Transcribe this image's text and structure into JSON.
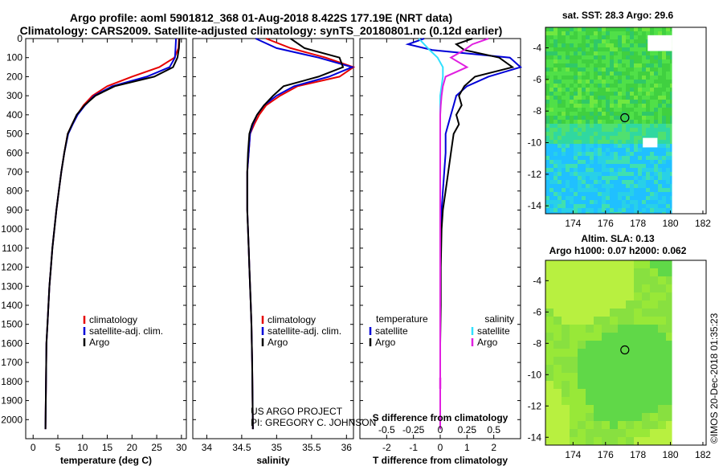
{
  "header": {
    "title_line1": "Argo profile: aoml 5901812_368 01-Aug-2018 8.422S 177.19E (NRT data)",
    "title_line2": "Climatology: CARS2009. Satellite-adjusted climatology: synTS_20180801.nc (0.12d earlier)"
  },
  "map_sst": {
    "title": "sat. SST: 28.3 Argo: 29.6"
  },
  "map_sla": {
    "title_line1": "Altim. SLA: 0.13",
    "title_line2": "Argo h1000: 0.07 h2000: 0.062"
  },
  "credits": {
    "project": "US ARGO PROJECT",
    "pi": "PI: GREGORY C. JOHNSON",
    "side": "©IMOS 20-Dec-2018 01:35:23"
  },
  "colors": {
    "climatology": "#e60000",
    "satellite": "#0000d8",
    "argo": "#000000",
    "sat_salinity": "#30e0ff",
    "argo_salinity": "#e020e0"
  },
  "chart_data": [
    {
      "type": "line",
      "xlabel": "temperature (deg C)",
      "ylim": [
        2100,
        0
      ],
      "xlim": [
        -1.5,
        31
      ],
      "xticks": [
        0,
        5,
        10,
        15,
        20,
        25,
        30
      ],
      "yticks": [
        0,
        100,
        200,
        300,
        400,
        500,
        600,
        700,
        800,
        900,
        1000,
        1100,
        1200,
        1300,
        1400,
        1500,
        1600,
        1700,
        1800,
        1900,
        2000
      ],
      "legend": [
        "climatology",
        "satellite-adj. clim.",
        "Argo"
      ],
      "series": [
        {
          "name": "climatology",
          "x": [
            29.5,
            29.4,
            28.6,
            25.5,
            20,
            15,
            12,
            10.2,
            8.9,
            7.9,
            7,
            6.3,
            5.7,
            5.2,
            4.7,
            4.3,
            3.9,
            3.6,
            3.3,
            3.1,
            2.9,
            2.7,
            2.5
          ],
          "y": [
            0,
            50,
            100,
            150,
            200,
            250,
            300,
            350,
            400,
            450,
            500,
            600,
            700,
            800,
            900,
            1000,
            1100,
            1200,
            1300,
            1400,
            1500,
            1600,
            2050
          ]
        },
        {
          "name": "satellite-adj. clim.",
          "x": [
            28.9,
            28.8,
            28.7,
            27.6,
            23,
            16,
            12.4,
            10.5,
            9,
            8,
            7.1,
            6.3,
            5.7,
            5.2,
            4.7,
            4.3,
            3.9,
            3.6,
            3.3,
            3.1,
            2.9,
            2.7,
            2.5
          ],
          "y": [
            0,
            50,
            100,
            150,
            200,
            250,
            300,
            350,
            400,
            450,
            500,
            600,
            700,
            800,
            900,
            1000,
            1100,
            1200,
            1300,
            1400,
            1500,
            1600,
            2050
          ]
        },
        {
          "name": "Argo",
          "x": [
            29.6,
            29.5,
            29.2,
            28.3,
            24.5,
            16.5,
            12.6,
            10.4,
            8.8,
            7.9,
            7,
            6.3,
            5.7,
            5.2,
            4.7,
            4.3,
            3.9,
            3.6,
            3.3,
            3.1,
            2.9,
            2.7,
            2.5
          ],
          "y": [
            0,
            50,
            100,
            150,
            200,
            250,
            300,
            350,
            400,
            450,
            500,
            600,
            700,
            800,
            900,
            1000,
            1100,
            1200,
            1300,
            1400,
            1500,
            1600,
            2050
          ]
        }
      ]
    },
    {
      "type": "line",
      "xlabel": "salinity",
      "ylim": [
        2100,
        0
      ],
      "xlim": [
        33.8,
        36.1
      ],
      "xticks": [
        34,
        34.5,
        35,
        35.5,
        36
      ],
      "legend": [
        "climatology",
        "satellite-adj. clim.",
        "Argo"
      ],
      "series": [
        {
          "name": "climatology",
          "x": [
            34.85,
            35.2,
            35.7,
            36.1,
            35.9,
            35.3,
            35.05,
            34.85,
            34.75,
            34.68,
            34.62,
            34.6,
            34.58,
            34.58,
            34.58,
            34.59,
            34.6,
            34.61,
            34.62,
            34.63,
            34.64,
            34.65,
            34.66
          ],
          "y": [
            0,
            50,
            100,
            150,
            200,
            250,
            300,
            350,
            400,
            450,
            500,
            600,
            700,
            800,
            900,
            1000,
            1100,
            1200,
            1300,
            1400,
            1500,
            1700,
            2050
          ]
        },
        {
          "name": "satellite-adj. clim.",
          "x": [
            34.7,
            35,
            35.6,
            36.08,
            35.75,
            35.25,
            35,
            34.82,
            34.72,
            34.66,
            34.62,
            34.6,
            34.58,
            34.58,
            34.58,
            34.59,
            34.6,
            34.61,
            34.62,
            34.63,
            34.64,
            34.65,
            34.66
          ],
          "y": [
            0,
            50,
            100,
            150,
            200,
            250,
            300,
            350,
            400,
            450,
            500,
            600,
            700,
            800,
            900,
            1000,
            1100,
            1200,
            1300,
            1400,
            1500,
            1700,
            2050
          ]
        },
        {
          "name": "Argo",
          "x": [
            35.2,
            35.4,
            35.9,
            35.95,
            35.6,
            35.1,
            34.95,
            34.82,
            34.72,
            34.65,
            34.61,
            34.59,
            34.58,
            34.58,
            34.58,
            34.59,
            34.6,
            34.61,
            34.62,
            34.63,
            34.64,
            34.65,
            34.66
          ],
          "y": [
            0,
            50,
            100,
            150,
            200,
            250,
            300,
            350,
            400,
            450,
            500,
            600,
            700,
            800,
            900,
            1000,
            1100,
            1200,
            1300,
            1400,
            1500,
            1700,
            2050
          ]
        }
      ]
    },
    {
      "type": "line",
      "xlabel": "T difference from climatology",
      "xlabel_top": "S difference from climatology",
      "ylim": [
        2100,
        0
      ],
      "xlim": [
        -3,
        3
      ],
      "xticks": [
        -2,
        -1,
        0,
        1,
        2
      ],
      "xticks_top_labels": [
        "-0.5",
        "-0.25",
        "0",
        "0.25",
        "0.5"
      ],
      "legend_left_title": "temperature",
      "legend_right_title": "salinity",
      "legend": [
        "satellite",
        "Argo",
        "satellite",
        "Argo"
      ],
      "series": [
        {
          "name": "satellite",
          "x": [
            -0.6,
            -1.2,
            -0.3,
            2.6,
            3.0,
            1.8,
            1.0,
            0.6,
            0.5,
            0.4,
            0.3,
            0.2,
            0.2,
            0.15,
            0.1,
            0.05,
            0,
            0,
            0,
            0,
            0
          ],
          "y": [
            0,
            30,
            60,
            100,
            150,
            200,
            250,
            300,
            350,
            400,
            450,
            500,
            600,
            700,
            800,
            900,
            1000,
            1200,
            1400,
            1600,
            2050
          ]
        },
        {
          "name": "Argo",
          "x": [
            1.2,
            0.6,
            0.9,
            2.2,
            2.7,
            1.3,
            0.9,
            0.7,
            0.8,
            0.6,
            0.7,
            0.5,
            0.4,
            0.3,
            0.2,
            0.1,
            0.05,
            0.02,
            0.02,
            0,
            0
          ],
          "y": [
            0,
            30,
            60,
            100,
            150,
            200,
            250,
            300,
            350,
            400,
            450,
            500,
            600,
            700,
            800,
            900,
            1000,
            1200,
            1400,
            1600,
            2050
          ]
        },
        {
          "name": "satellite",
          "x": [
            -0.8,
            -0.6,
            -0.4,
            -0.1,
            0.1,
            0.1,
            0.05,
            0,
            0,
            0,
            0,
            0,
            0,
            0,
            0,
            0,
            0,
            0,
            0
          ],
          "y": [
            0,
            30,
            60,
            100,
            150,
            200,
            250,
            300,
            350,
            400,
            450,
            500,
            600,
            700,
            800,
            1000,
            1200,
            1600,
            2050
          ]
        },
        {
          "name": "Argo",
          "x": [
            1.8,
            1.2,
            0.9,
            0.4,
            1.0,
            0.2,
            0.1,
            0.05,
            0.02,
            0,
            0,
            0,
            0,
            0,
            0,
            0,
            0,
            0,
            0
          ],
          "y": [
            0,
            30,
            60,
            100,
            150,
            200,
            250,
            300,
            350,
            400,
            450,
            500,
            600,
            700,
            800,
            1000,
            1200,
            1600,
            2050
          ]
        }
      ]
    },
    {
      "type": "heatmap",
      "title": "sat. SST: 28.3 Argo: 29.6",
      "xlim": [
        172.3,
        182.2
      ],
      "ylim": [
        -14.5,
        -2.7
      ],
      "xticks": [
        174,
        176,
        178,
        180,
        182
      ],
      "yticks": [
        -4,
        -6,
        -8,
        -10,
        -12,
        -14
      ],
      "marker": {
        "lon": 177.19,
        "lat": -8.422
      }
    },
    {
      "type": "heatmap",
      "title": "Altim. SLA: 0.13",
      "subtitle": "Argo h1000: 0.07 h2000: 0.062",
      "xlim": [
        172.3,
        182.2
      ],
      "ylim": [
        -14.5,
        -2.7
      ],
      "xticks": [
        174,
        176,
        178,
        180,
        182
      ],
      "yticks": [
        -4,
        -6,
        -8,
        -10,
        -12,
        -14
      ],
      "marker": {
        "lon": 177.19,
        "lat": -8.422
      }
    }
  ]
}
